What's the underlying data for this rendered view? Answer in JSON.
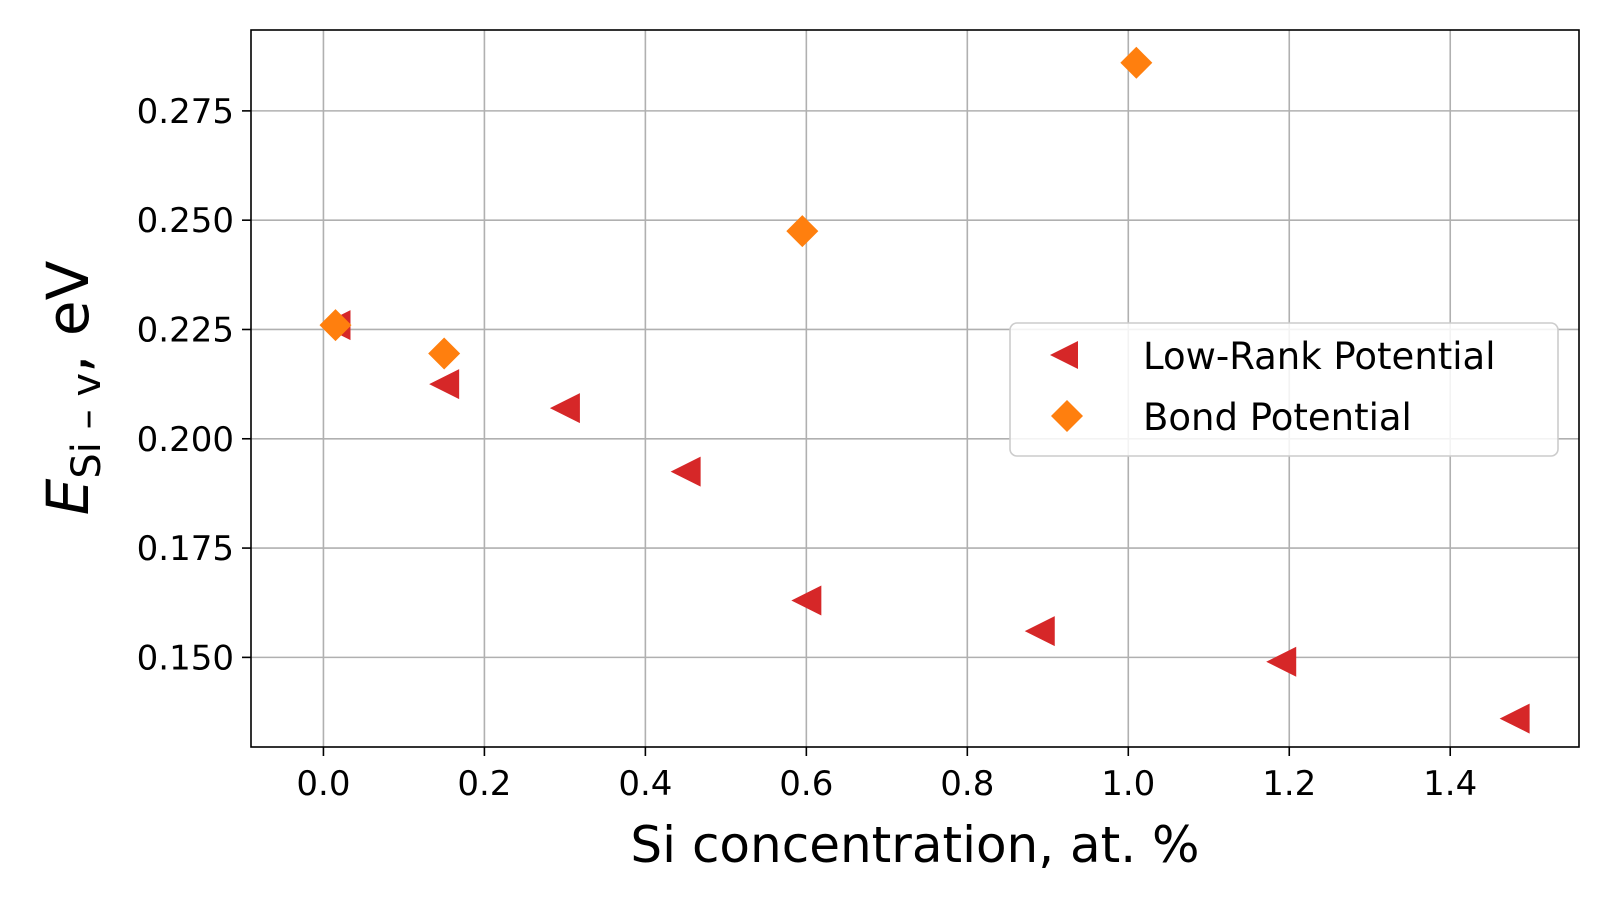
{
  "chart_data": {
    "type": "scatter",
    "xlabel": "Si concentration, at. %",
    "ylabel": {
      "main": "E",
      "subscript": "Si – v",
      "suffix": ", eV"
    },
    "xlim": [
      -0.09,
      1.56
    ],
    "ylim": [
      0.1295,
      0.2935
    ],
    "x_ticks": [
      0.0,
      0.2,
      0.4,
      0.6,
      0.8,
      1.0,
      1.2,
      1.4
    ],
    "x_tick_labels": [
      "0.0",
      "0.2",
      "0.4",
      "0.6",
      "0.8",
      "1.0",
      "1.2",
      "1.4"
    ],
    "y_ticks": [
      0.15,
      0.175,
      0.2,
      0.225,
      0.25,
      0.275
    ],
    "y_tick_labels": [
      "0.150",
      "0.175",
      "0.200",
      "0.225",
      "0.250",
      "0.275"
    ],
    "grid": true,
    "legend_position": "center-right",
    "series": [
      {
        "name": "Low-Rank Potential",
        "marker": "triangle-left",
        "color": "#d62728",
        "x": [
          0.015,
          0.15,
          0.3,
          0.45,
          0.6,
          0.89,
          1.19,
          1.48
        ],
        "y": [
          0.226,
          0.2125,
          0.207,
          0.1925,
          0.163,
          0.156,
          0.149,
          0.136
        ]
      },
      {
        "name": "Bond Potential",
        "marker": "diamond",
        "color": "#ff7f0e",
        "x": [
          0.015,
          0.15,
          0.595,
          1.01
        ],
        "y": [
          0.226,
          0.2195,
          0.2475,
          0.286
        ]
      }
    ]
  }
}
